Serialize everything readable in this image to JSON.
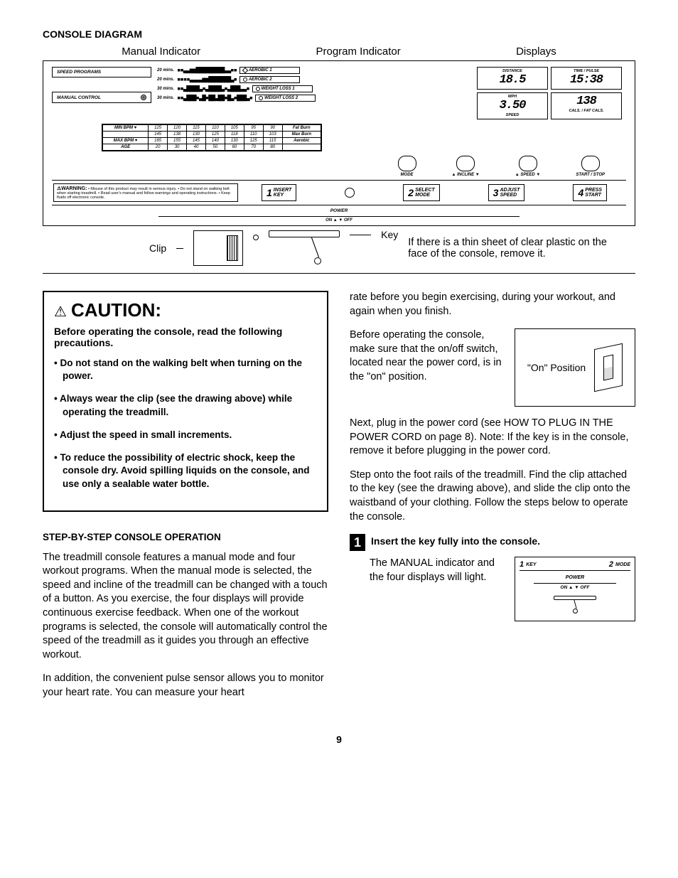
{
  "title": "CONSOLE DIAGRAM",
  "topLabels": {
    "manual": "Manual Indicator",
    "program": "Program Indicator",
    "displays": "Displays"
  },
  "leftBoxes": {
    "speed": "SPEED PROGRAMS",
    "manual": "MANUAL CONTROL"
  },
  "programs": [
    {
      "time": "20 mins.",
      "bars": "▪▪▃▃▅▅▇▇▇▇▇▇▇▇▇▃▃▪▪",
      "shape": "hex",
      "name": "AEROBIC 1"
    },
    {
      "time": "20 mins.",
      "bars": "▪▪▪▪▃▃▃▃▅▅▇▇▇▇▇▇▇▃▪",
      "shape": "circ",
      "name": "AEROBIC 2"
    },
    {
      "time": "30 mins.",
      "bars": "▪▪▃▇▇▇▇▃▪▃▇▇▇▇▃▪▃▇▇▇▃▃▪",
      "shape": "circ",
      "name": "WEIGHT LOSS 1"
    },
    {
      "time": "30 mins.",
      "bars": "▪▪▃▇▇▇▪▃▇▪▇▇▃▇▇▪▇▃▪▇▇▇▃▪",
      "shape": "circ",
      "name": "WEIGHT LOSS 2"
    }
  ],
  "displays": [
    {
      "top": "DISTANCE",
      "val": "18.5",
      "sub": ""
    },
    {
      "top": "TIME / PULSE",
      "val": "15:38",
      "sub": ""
    },
    {
      "top": "MPH",
      "val": "3.50",
      "sub": "SPEED"
    },
    {
      "top": "",
      "val": "138",
      "sub": "CALS. / FAT CALS."
    }
  ],
  "bpm": {
    "rows": [
      [
        "MIN BPM ♥",
        "125",
        "120",
        "115",
        "110",
        "105",
        "95",
        "90",
        "Fat Burn"
      ],
      [
        "",
        "145",
        "138",
        "130",
        "125",
        "118",
        "110",
        "103",
        "Max Burn"
      ],
      [
        "MAX BPM ♥",
        "165",
        "155",
        "145",
        "140",
        "130",
        "125",
        "115",
        "Aerobic"
      ],
      [
        "AGE",
        "20",
        "30",
        "40",
        "50",
        "60",
        "70",
        "80",
        ""
      ]
    ]
  },
  "mainButtons": [
    "MODE",
    "▲ INCLINE ▼",
    "▲ SPEED ▼",
    "START / STOP"
  ],
  "warning": {
    "head": "⚠WARNING:",
    "text": "• Misuse of this product may result in serious injury. • Do not stand on walking belt when starting treadmill. • Read user's manual and follow warnings and operating instructions. • Keep fluids off electronic console."
  },
  "steps": [
    {
      "n": "1",
      "a": "INSERT",
      "b": "KEY"
    },
    {
      "n": "2",
      "a": "SELECT",
      "b": "MODE"
    },
    {
      "n": "3",
      "a": "ADJUST",
      "b": "SPEED"
    },
    {
      "n": "4",
      "a": "PRESS",
      "b": "START"
    }
  ],
  "power": "POWER",
  "onoff": "ON ▲     ▼ OFF",
  "clip": "Clip",
  "key": "Key",
  "plasticNote": "If there is a thin sheet of clear plastic on the face of the console, remove it.",
  "caution": {
    "word": "CAUTION:",
    "lead": "Before operating the console, read the following precautions.",
    "items": [
      "Do not stand on the walking belt when turning on the power.",
      "Always wear the clip (see the drawing above) while operating the treadmill.",
      "Adjust the speed in small increments.",
      "To reduce the possibility of electric shock, keep the console dry. Avoid spilling liquids on the console, and use only a sealable  water bottle."
    ]
  },
  "opHead": "STEP-BY-STEP CONSOLE OPERATION",
  "p1": "The treadmill console features a manual mode and four workout programs. When the manual mode is selected, the speed and incline of the treadmill can be changed with a touch of a button. As you exercise, the four displays will provide continuous exercise feedback. When one of the workout programs is selected, the console will automatically control the speed of the treadmill as it guides you through an effective workout.",
  "p2": "In addition, the convenient pulse sensor allows you to monitor your heart rate. You can measure your heart",
  "p3": "rate before you begin exercising, during your workout, and again when you finish.",
  "p4": "Before operating the console, make sure that the on/off switch, located near the power cord, is in the \"on\" position.",
  "onPos": "\"On\" Position",
  "p5": "Next, plug in the power cord (see HOW TO PLUG IN THE POWER CORD on page 8). Note: If the key is in the console, remove it before plugging in the power cord.",
  "p6": "Step onto the foot rails of the treadmill. Find the clip attached to the key (see the drawing above), and slide the clip onto the waistband of your clothing. Follow the steps below to operate the console.",
  "step1": {
    "num": "1",
    "title": "Insert the key fully into the console.",
    "body": "The MANUAL indicator and the four displays will light."
  },
  "miniTop": {
    "left": "KEY",
    "leftN": "1",
    "right": "MODE",
    "rightN": "2"
  },
  "pageNum": "9"
}
